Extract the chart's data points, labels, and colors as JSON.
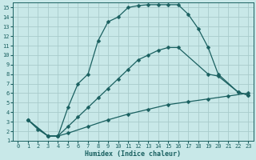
{
  "xlabel": "Humidex (Indice chaleur)",
  "xlim": [
    -0.5,
    23.5
  ],
  "ylim": [
    1,
    15.5
  ],
  "xticks": [
    0,
    1,
    2,
    3,
    4,
    5,
    6,
    7,
    8,
    9,
    10,
    11,
    12,
    13,
    14,
    15,
    16,
    17,
    18,
    19,
    20,
    21,
    22,
    23
  ],
  "yticks": [
    1,
    2,
    3,
    4,
    5,
    6,
    7,
    8,
    9,
    10,
    11,
    12,
    13,
    14,
    15
  ],
  "background_color": "#c8e8e8",
  "grid_color": "#a8cccc",
  "line_color": "#1a6060",
  "curve1_x": [
    1,
    2,
    3,
    4,
    5,
    6,
    7,
    8,
    9,
    10,
    11,
    12,
    13,
    14,
    15,
    16,
    17,
    18,
    19,
    20,
    22,
    23
  ],
  "curve1_y": [
    3.2,
    2.2,
    1.5,
    1.5,
    4.5,
    7.0,
    8.0,
    11.5,
    13.5,
    14.0,
    15.0,
    15.2,
    15.3,
    15.3,
    15.3,
    15.3,
    14.3,
    12.8,
    10.8,
    8.0,
    6.1,
    5.8
  ],
  "curve2_x": [
    1,
    3,
    4,
    5,
    6,
    7,
    8,
    9,
    10,
    11,
    12,
    13,
    14,
    15,
    16,
    19,
    20,
    22,
    23
  ],
  "curve2_y": [
    3.2,
    1.5,
    1.5,
    2.5,
    3.5,
    4.5,
    5.5,
    6.5,
    7.5,
    8.5,
    9.5,
    10.0,
    10.5,
    10.8,
    10.8,
    8.0,
    7.8,
    6.1,
    5.8
  ],
  "curve3_x": [
    1,
    3,
    4,
    5,
    7,
    9,
    11,
    13,
    15,
    17,
    19,
    21,
    23
  ],
  "curve3_y": [
    3.2,
    1.5,
    1.5,
    1.8,
    2.5,
    3.2,
    3.8,
    4.3,
    4.8,
    5.1,
    5.4,
    5.7,
    6.0
  ],
  "markersize": 2.5,
  "linewidth": 0.9
}
